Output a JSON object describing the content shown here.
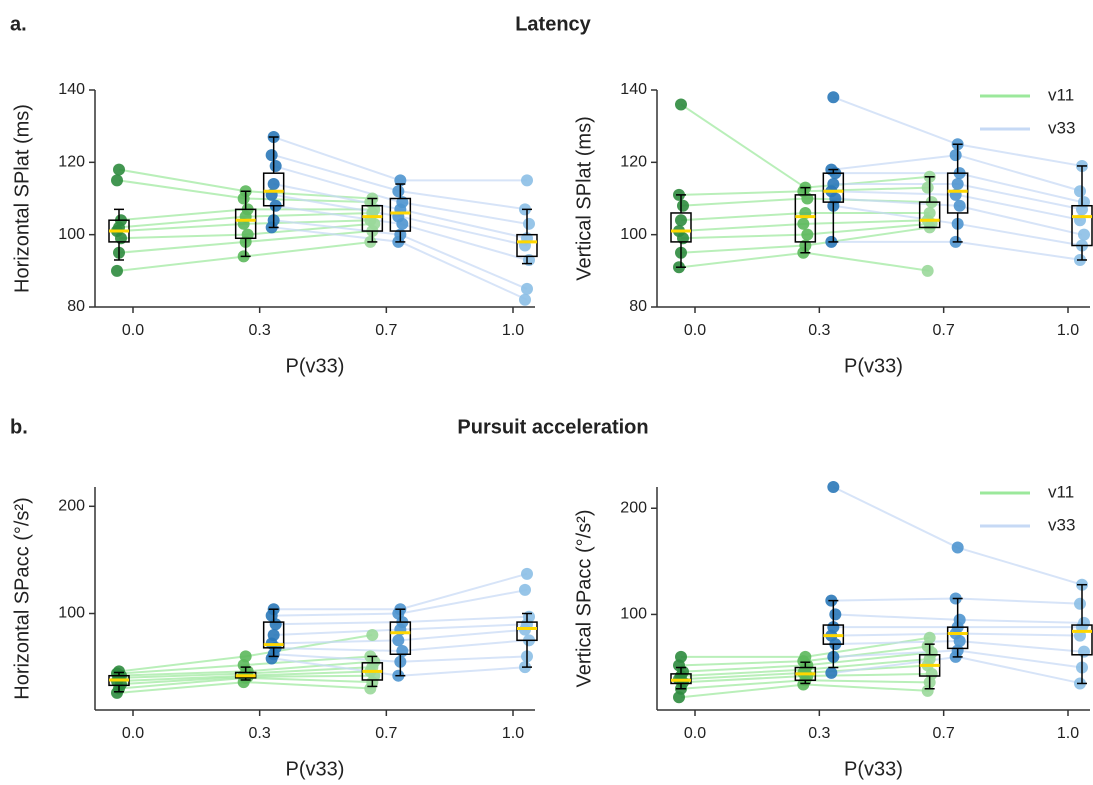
{
  "panels": [
    {
      "label": "a.",
      "title": "Latency"
    },
    {
      "label": "b.",
      "title": "Pursuit acceleration"
    }
  ],
  "chart_data": [
    {
      "type": "box",
      "ylabel": "Horizontal SPlat (ms)",
      "xlabel": "P(v33)",
      "categories": [
        "0.0",
        "0.3",
        "0.7",
        "1.0"
      ],
      "ylim": [
        80,
        140
      ],
      "yticks": [
        80,
        100,
        120,
        140
      ],
      "median_color": "#ffd700",
      "series": [
        {
          "color": "#9be89b",
          "point_colors": [
            "#2e8b3e",
            "#5cb85c",
            "#9ad89a",
            null
          ],
          "values": [
            [
              90,
              94,
              98,
              null
            ],
            [
              95,
              98,
              101,
              null
            ],
            [
              99,
              100,
              103,
              null
            ],
            [
              101,
              103,
              104,
              null
            ],
            [
              102,
              105,
              106,
              null
            ],
            [
              104,
              107,
              107,
              null
            ],
            [
              115,
              110,
              109,
              null
            ],
            [
              118,
              112,
              110,
              null
            ]
          ],
          "boxes": [
            {
              "low": 93,
              "q1": 98,
              "median": 101,
              "q3": 104,
              "high": 107
            },
            {
              "low": 94,
              "q1": 99,
              "median": 104,
              "q3": 107,
              "high": 112
            },
            {
              "low": 98,
              "q1": 101,
              "median": 105,
              "q3": 108,
              "high": 110
            },
            null
          ]
        },
        {
          "color": "#c6d9f5",
          "point_colors": [
            null,
            "#2a78b8",
            "#4f95cf",
            "#8cbfe6"
          ],
          "values": [
            [
              null,
              102,
              98,
              82
            ],
            [
              null,
              104,
              100,
              85
            ],
            [
              null,
              108,
              103,
              93
            ],
            [
              null,
              111,
              105,
              97
            ],
            [
              null,
              114,
              107,
              99
            ],
            [
              null,
              119,
              109,
              103
            ],
            [
              null,
              122,
              112,
              107
            ],
            [
              null,
              127,
              115,
              115
            ]
          ],
          "boxes": [
            null,
            {
              "low": 102,
              "q1": 108,
              "median": 112,
              "q3": 117,
              "high": 127
            },
            {
              "low": 98,
              "q1": 101,
              "median": 106,
              "q3": 110,
              "high": 114
            },
            {
              "low": 92,
              "q1": 94,
              "median": 98,
              "q3": 100,
              "high": 107
            }
          ]
        }
      ]
    },
    {
      "type": "box",
      "ylabel": "Vertical SPlat (ms)",
      "xlabel": "P(v33)",
      "categories": [
        "0.0",
        "0.3",
        "0.7",
        "1.0"
      ],
      "ylim": [
        80,
        140
      ],
      "yticks": [
        80,
        100,
        120,
        140
      ],
      "median_color": "#ffd700",
      "legend": "upper right",
      "series": [
        {
          "name": "v11",
          "color": "#9be89b",
          "point_colors": [
            "#2e8b3e",
            "#5cb85c",
            "#9ad89a",
            null
          ],
          "values": [
            [
              91,
              95,
              90,
              null
            ],
            [
              95,
              97,
              102,
              null
            ],
            [
              99,
              100,
              103,
              null
            ],
            [
              101,
              103,
              104,
              null
            ],
            [
              104,
              106,
              106,
              null
            ],
            [
              108,
              110,
              109,
              null
            ],
            [
              111,
              112,
              113,
              null
            ],
            [
              136,
              113,
              116,
              null
            ]
          ],
          "boxes": [
            {
              "low": 91,
              "q1": 98,
              "median": 101,
              "q3": 106,
              "high": 111
            },
            {
              "low": 95,
              "q1": 98,
              "median": 105,
              "q3": 111,
              "high": 113
            },
            {
              "low": 102,
              "q1": 102,
              "median": 104,
              "q3": 109,
              "high": 116
            },
            null
          ]
        },
        {
          "name": "v33",
          "color": "#c6d9f5",
          "point_colors": [
            null,
            "#2a78b8",
            "#4f95cf",
            "#8cbfe6"
          ],
          "values": [
            [
              null,
              98,
              98,
              93
            ],
            [
              null,
              108,
              103,
              97
            ],
            [
              null,
              110,
              108,
              100
            ],
            [
              null,
              112,
              111,
              104
            ],
            [
              null,
              114,
              114,
              107
            ],
            [
              null,
              117,
              117,
              109
            ],
            [
              null,
              118,
              122,
              112
            ],
            [
              null,
              138,
              125,
              119
            ]
          ],
          "boxes": [
            null,
            {
              "low": 98,
              "q1": 109,
              "median": 112,
              "q3": 117,
              "high": 118
            },
            {
              "low": 98,
              "q1": 106,
              "median": 112,
              "q3": 117,
              "high": 125
            },
            {
              "low": 93,
              "q1": 97,
              "median": 105,
              "q3": 108,
              "high": 119
            }
          ]
        }
      ]
    },
    {
      "type": "box",
      "ylabel": "Horizontal SPacc (°/s²)",
      "xlabel": "P(v33)",
      "categories": [
        "0.0",
        "0.3",
        "0.7",
        "1.0"
      ],
      "ylim": [
        10,
        218
      ],
      "yticks": [
        100,
        200
      ],
      "median_color": "#ffd700",
      "series": [
        {
          "color": "#9be89b",
          "point_colors": [
            "#2e8b3e",
            "#5cb85c",
            "#9ad89a",
            null
          ],
          "values": [
            [
              26,
              36,
              30,
              null
            ],
            [
              30,
              40,
              36,
              null
            ],
            [
              34,
              41,
              42,
              null
            ],
            [
              37,
              42,
              46,
              null
            ],
            [
              40,
              44,
              50,
              null
            ],
            [
              42,
              46,
              55,
              null
            ],
            [
              44,
              52,
              60,
              null
            ],
            [
              46,
              60,
              80,
              null
            ]
          ],
          "boxes": [
            {
              "low": 27,
              "q1": 33,
              "median": 38,
              "q3": 42,
              "high": 45
            },
            {
              "low": 38,
              "q1": 40,
              "median": 42,
              "q3": 45,
              "high": 50
            },
            {
              "low": 32,
              "q1": 38,
              "median": 46,
              "q3": 54,
              "high": 60
            },
            null
          ]
        },
        {
          "color": "#c6d9f5",
          "point_colors": [
            null,
            "#2a78b8",
            "#4f95cf",
            "#8cbfe6"
          ],
          "values": [
            [
              null,
              58,
              42,
              50
            ],
            [
              null,
              62,
              55,
              60
            ],
            [
              null,
              68,
              65,
              75
            ],
            [
              null,
              72,
              75,
              85
            ],
            [
              null,
              80,
              85,
              90
            ],
            [
              null,
              90,
              92,
              97
            ],
            [
              null,
              98,
              100,
              122
            ],
            [
              null,
              104,
              104,
              137
            ]
          ],
          "boxes": [
            null,
            {
              "low": 60,
              "q1": 68,
              "median": 71,
              "q3": 92,
              "high": 104
            },
            {
              "low": 42,
              "q1": 62,
              "median": 82,
              "q3": 92,
              "high": 104
            },
            {
              "low": 50,
              "q1": 75,
              "median": 86,
              "q3": 92,
              "high": 100
            }
          ]
        }
      ]
    },
    {
      "type": "box",
      "ylabel": "Vertical SPacc (°/s²)",
      "xlabel": "P(v33)",
      "categories": [
        "0.0",
        "0.3",
        "0.7",
        "1.0"
      ],
      "ylim": [
        10,
        220
      ],
      "yticks": [
        100,
        200
      ],
      "median_color": "#ffd700",
      "legend": "upper right",
      "series": [
        {
          "name": "v11",
          "color": "#9be89b",
          "point_colors": [
            "#2e8b3e",
            "#5cb85c",
            "#9ad89a",
            null
          ],
          "values": [
            [
              22,
              34,
              28,
              null
            ],
            [
              30,
              38,
              36,
              null
            ],
            [
              36,
              42,
              44,
              null
            ],
            [
              39,
              45,
              52,
              null
            ],
            [
              42,
              48,
              58,
              null
            ],
            [
              46,
              52,
              64,
              null
            ],
            [
              52,
              56,
              70,
              null
            ],
            [
              60,
              60,
              78,
              null
            ]
          ],
          "boxes": [
            {
              "low": 30,
              "q1": 35,
              "median": 38,
              "q3": 44,
              "high": 50
            },
            {
              "low": 35,
              "q1": 38,
              "median": 44,
              "q3": 50,
              "high": 55
            },
            {
              "low": 30,
              "q1": 42,
              "median": 52,
              "q3": 62,
              "high": 72
            },
            null
          ]
        },
        {
          "name": "v33",
          "color": "#c6d9f5",
          "point_colors": [
            null,
            "#2a78b8",
            "#4f95cf",
            "#8cbfe6"
          ],
          "values": [
            [
              null,
              45,
              60,
              35
            ],
            [
              null,
              60,
              66,
              50
            ],
            [
              null,
              72,
              75,
              65
            ],
            [
              null,
              80,
              82,
              80
            ],
            [
              null,
              88,
              88,
              88
            ],
            [
              null,
              100,
              95,
              92
            ],
            [
              null,
              113,
              115,
              110
            ],
            [
              null,
              220,
              163,
              128
            ]
          ],
          "boxes": [
            null,
            {
              "low": 50,
              "q1": 72,
              "median": 80,
              "q3": 90,
              "high": 113
            },
            {
              "low": 60,
              "q1": 68,
              "median": 82,
              "q3": 88,
              "high": 115
            },
            {
              "low": 35,
              "q1": 62,
              "median": 84,
              "q3": 90,
              "high": 128
            }
          ]
        }
      ]
    }
  ]
}
